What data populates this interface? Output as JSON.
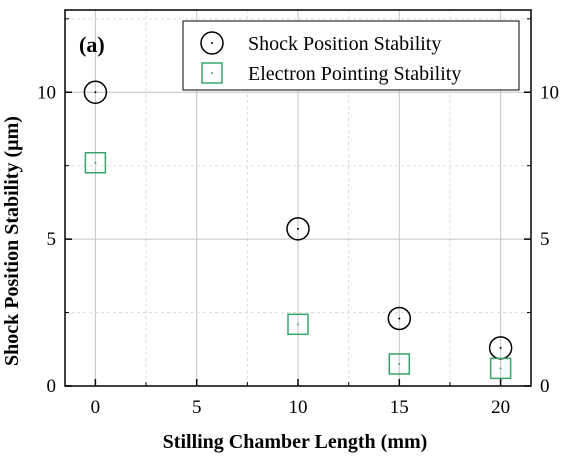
{
  "chart_data": {
    "type": "scatter",
    "panel_label": "(a)",
    "xlabel": "Stilling Chamber Length (mm)",
    "ylabel": "Shock Position Stability (µm)",
    "xlim": [
      -1.5,
      21.5
    ],
    "ylim": [
      0,
      12.8
    ],
    "xticks": [
      0,
      5,
      10,
      15,
      20
    ],
    "yticks": [
      0,
      5,
      10
    ],
    "right_yticks": [
      0,
      5,
      10
    ],
    "grid": true,
    "legend_position": "top-right",
    "series": [
      {
        "name": "Shock Position Stability",
        "marker": "circle",
        "color": "#000000",
        "x": [
          0,
          10,
          15,
          20
        ],
        "y": [
          10.0,
          5.35,
          2.3,
          1.3
        ]
      },
      {
        "name": "Electron Pointing Stability",
        "marker": "square",
        "color": "#3aa56b",
        "x": [
          0,
          10,
          15,
          20
        ],
        "y": [
          7.6,
          2.1,
          0.75,
          0.6
        ]
      }
    ]
  }
}
